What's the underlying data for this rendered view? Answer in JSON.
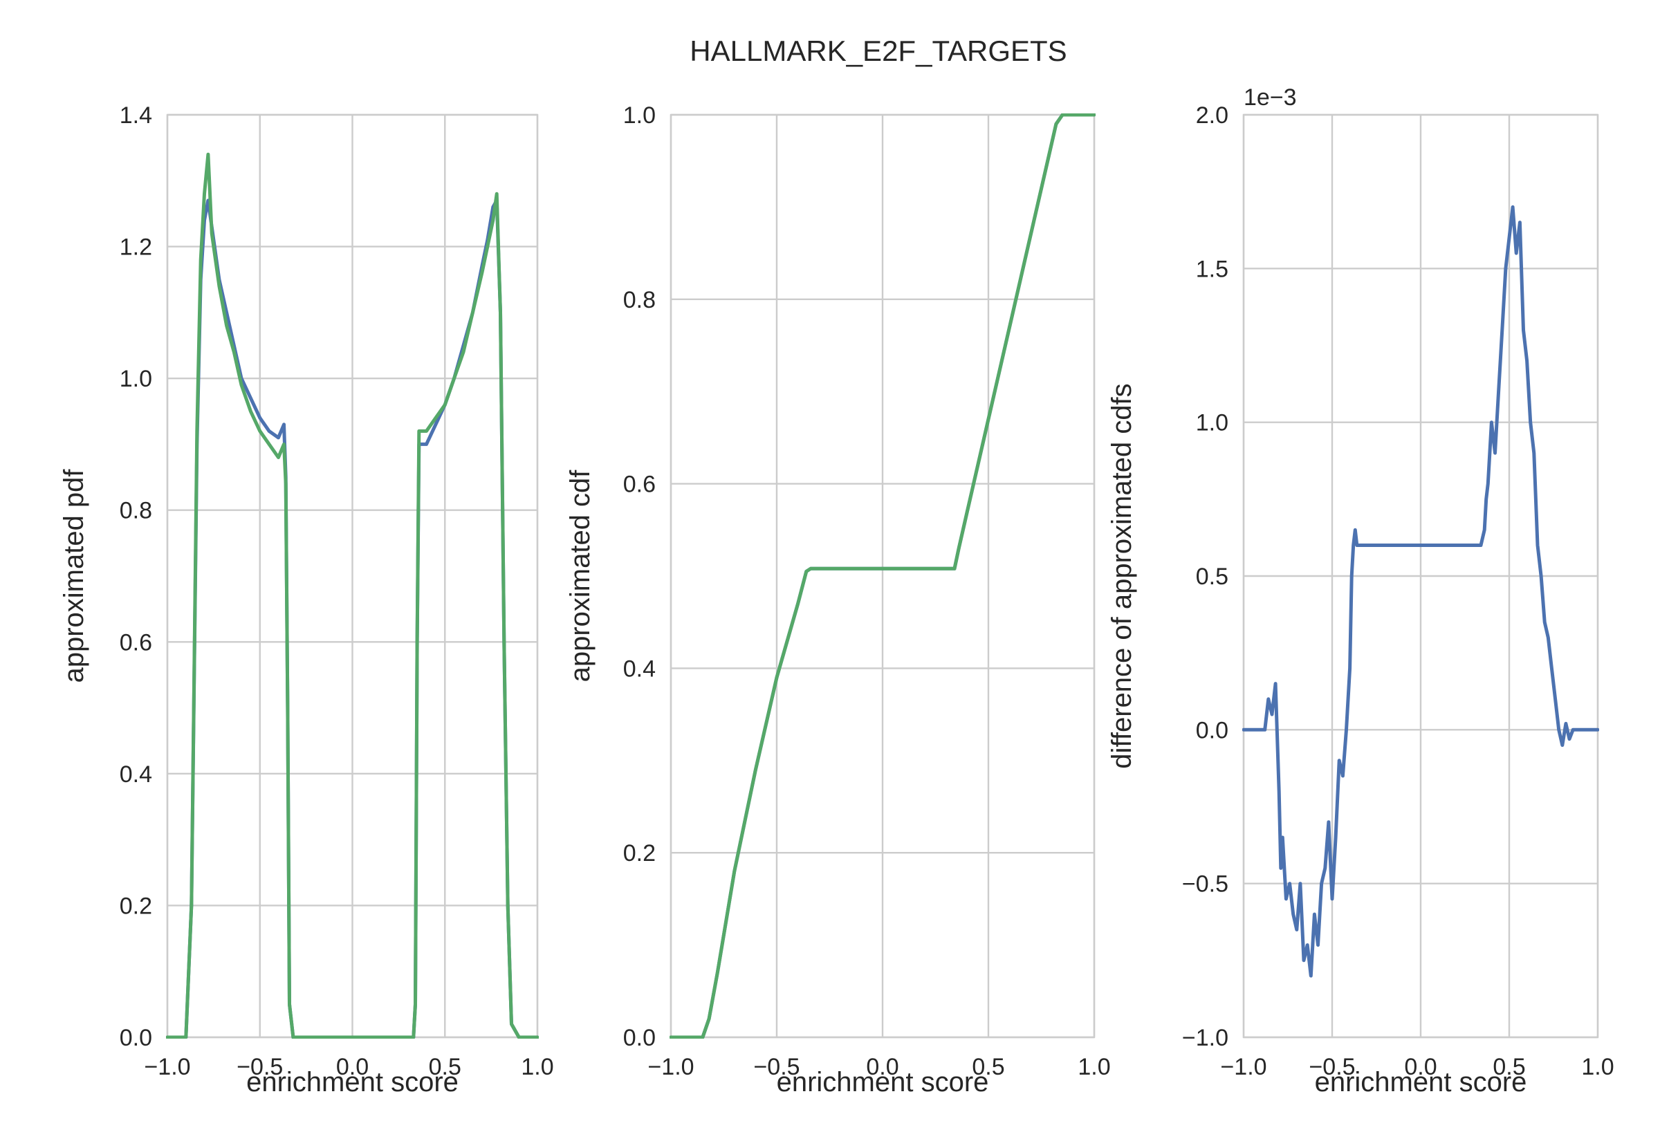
{
  "title": "HALLMARK_E2F_TARGETS",
  "colors": {
    "blue": "#4c72b0",
    "green": "#55a868",
    "grid": "#cccccc",
    "text": "#262626"
  },
  "chart_data": [
    {
      "type": "line",
      "xlabel": "enrichment score",
      "ylabel": "approximated pdf",
      "xlim": [
        -1.0,
        1.0
      ],
      "ylim": [
        0.0,
        1.4
      ],
      "xticks": [
        "−1.0",
        "−0.5",
        "0.0",
        "0.5",
        "1.0"
      ],
      "yticks": [
        "0.0",
        "0.2",
        "0.4",
        "0.6",
        "0.8",
        "1.0",
        "1.2",
        "1.4"
      ],
      "grid": true,
      "series": [
        {
          "color": "#4c72b0",
          "x": [
            -1.0,
            -0.9,
            -0.87,
            -0.84,
            -0.82,
            -0.8,
            -0.78,
            -0.76,
            -0.72,
            -0.68,
            -0.64,
            -0.6,
            -0.55,
            -0.5,
            -0.45,
            -0.4,
            -0.37,
            -0.36,
            -0.35,
            -0.34,
            -0.32,
            -0.3,
            0.3,
            0.33,
            0.34,
            0.35,
            0.36,
            0.4,
            0.45,
            0.5,
            0.55,
            0.6,
            0.65,
            0.7,
            0.73,
            0.76,
            0.78,
            0.8,
            0.82,
            0.84,
            0.86,
            0.9,
            1.0
          ],
          "y": [
            0.0,
            0.0,
            0.2,
            0.9,
            1.15,
            1.24,
            1.27,
            1.23,
            1.15,
            1.1,
            1.05,
            1.0,
            0.97,
            0.94,
            0.92,
            0.91,
            0.93,
            0.85,
            0.5,
            0.05,
            0.0,
            0.0,
            0.0,
            0.0,
            0.05,
            0.6,
            0.9,
            0.9,
            0.93,
            0.96,
            1.0,
            1.05,
            1.1,
            1.17,
            1.21,
            1.26,
            1.27,
            1.1,
            0.6,
            0.2,
            0.02,
            0.0,
            0.0
          ]
        },
        {
          "color": "#55a868",
          "x": [
            -1.0,
            -0.9,
            -0.87,
            -0.84,
            -0.82,
            -0.8,
            -0.78,
            -0.76,
            -0.72,
            -0.68,
            -0.64,
            -0.6,
            -0.55,
            -0.5,
            -0.45,
            -0.4,
            -0.37,
            -0.36,
            -0.35,
            -0.34,
            -0.32,
            -0.3,
            0.3,
            0.33,
            0.34,
            0.35,
            0.36,
            0.4,
            0.45,
            0.5,
            0.55,
            0.6,
            0.65,
            0.7,
            0.73,
            0.76,
            0.78,
            0.8,
            0.82,
            0.84,
            0.86,
            0.9,
            1.0
          ],
          "y": [
            0.0,
            0.0,
            0.2,
            0.92,
            1.18,
            1.28,
            1.34,
            1.22,
            1.14,
            1.08,
            1.04,
            0.99,
            0.95,
            0.92,
            0.9,
            0.88,
            0.9,
            0.84,
            0.5,
            0.05,
            0.0,
            0.0,
            0.0,
            0.0,
            0.05,
            0.6,
            0.92,
            0.92,
            0.94,
            0.96,
            1.0,
            1.04,
            1.1,
            1.16,
            1.2,
            1.24,
            1.28,
            1.1,
            0.6,
            0.2,
            0.02,
            0.0,
            0.0
          ]
        }
      ]
    },
    {
      "type": "line",
      "xlabel": "enrichment score",
      "ylabel": "approximated cdf",
      "xlim": [
        -1.0,
        1.0
      ],
      "ylim": [
        0.0,
        1.0
      ],
      "xticks": [
        "−1.0",
        "−0.5",
        "0.0",
        "0.5",
        "1.0"
      ],
      "yticks": [
        "0.0",
        "0.2",
        "0.4",
        "0.6",
        "0.8",
        "1.0"
      ],
      "grid": true,
      "series": [
        {
          "color": "#4c72b0",
          "x": [
            -1.0,
            -0.85,
            -0.82,
            -0.78,
            -0.7,
            -0.6,
            -0.5,
            -0.4,
            -0.36,
            -0.34,
            0.0,
            0.34,
            0.36,
            0.4,
            0.5,
            0.6,
            0.7,
            0.78,
            0.82,
            0.85,
            1.0
          ],
          "y": [
            0.0,
            0.0,
            0.02,
            0.07,
            0.18,
            0.29,
            0.39,
            0.47,
            0.505,
            0.508,
            0.508,
            0.508,
            0.53,
            0.57,
            0.67,
            0.77,
            0.87,
            0.95,
            0.99,
            1.0,
            1.0
          ]
        },
        {
          "color": "#55a868",
          "x": [
            -1.0,
            -0.85,
            -0.82,
            -0.78,
            -0.7,
            -0.6,
            -0.5,
            -0.4,
            -0.36,
            -0.34,
            0.0,
            0.34,
            0.36,
            0.4,
            0.5,
            0.6,
            0.7,
            0.78,
            0.82,
            0.85,
            1.0
          ],
          "y": [
            0.0,
            0.0,
            0.02,
            0.07,
            0.18,
            0.29,
            0.39,
            0.47,
            0.505,
            0.508,
            0.508,
            0.508,
            0.53,
            0.57,
            0.67,
            0.77,
            0.87,
            0.95,
            0.99,
            1.0,
            1.0
          ]
        }
      ]
    },
    {
      "type": "line",
      "xlabel": "enrichment score",
      "ylabel": "difference of approximated cdfs",
      "offset_label": "1e−3",
      "xlim": [
        -1.0,
        1.0
      ],
      "ylim": [
        -1.0,
        2.0
      ],
      "xticks": [
        "−1.0",
        "−0.5",
        "0.0",
        "0.5",
        "1.0"
      ],
      "yticks": [
        "−1.0",
        "−0.5",
        "0.0",
        "0.5",
        "1.0",
        "1.5",
        "2.0"
      ],
      "grid": true,
      "series": [
        {
          "color": "#4c72b0",
          "x": [
            -1.0,
            -0.88,
            -0.86,
            -0.84,
            -0.82,
            -0.8,
            -0.79,
            -0.78,
            -0.76,
            -0.74,
            -0.72,
            -0.7,
            -0.68,
            -0.66,
            -0.64,
            -0.62,
            -0.6,
            -0.58,
            -0.56,
            -0.54,
            -0.52,
            -0.5,
            -0.48,
            -0.46,
            -0.44,
            -0.42,
            -0.4,
            -0.39,
            -0.38,
            -0.37,
            -0.36,
            -0.3,
            0.0,
            0.34,
            0.36,
            0.37,
            0.38,
            0.4,
            0.42,
            0.44,
            0.46,
            0.48,
            0.5,
            0.52,
            0.54,
            0.56,
            0.58,
            0.6,
            0.62,
            0.64,
            0.66,
            0.68,
            0.7,
            0.72,
            0.74,
            0.76,
            0.78,
            0.8,
            0.82,
            0.84,
            0.86,
            1.0
          ],
          "y": [
            0.0,
            0.0,
            0.1,
            0.05,
            0.15,
            -0.2,
            -0.45,
            -0.35,
            -0.55,
            -0.5,
            -0.6,
            -0.65,
            -0.5,
            -0.75,
            -0.7,
            -0.8,
            -0.6,
            -0.7,
            -0.5,
            -0.45,
            -0.3,
            -0.55,
            -0.35,
            -0.1,
            -0.15,
            0.0,
            0.2,
            0.5,
            0.6,
            0.65,
            0.6,
            0.6,
            0.6,
            0.6,
            0.65,
            0.75,
            0.8,
            1.0,
            0.9,
            1.1,
            1.3,
            1.5,
            1.6,
            1.7,
            1.55,
            1.65,
            1.3,
            1.2,
            1.0,
            0.9,
            0.6,
            0.5,
            0.35,
            0.3,
            0.2,
            0.1,
            0.0,
            -0.05,
            0.02,
            -0.03,
            0.0,
            0.0
          ]
        }
      ]
    }
  ]
}
